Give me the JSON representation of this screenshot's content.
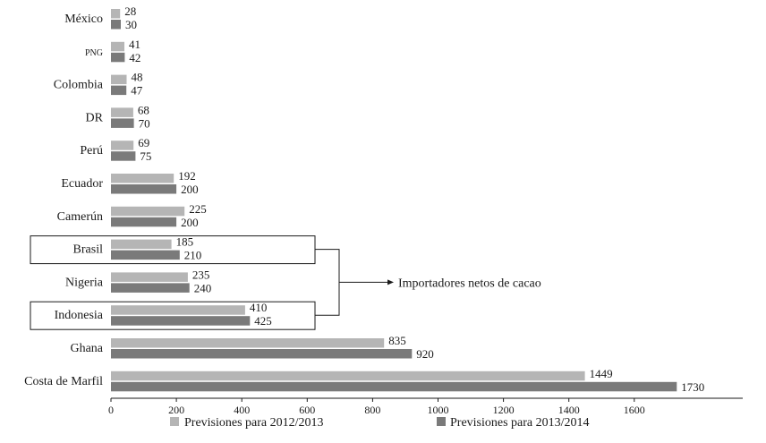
{
  "chart_data": {
    "type": "bar",
    "orientation": "horizontal",
    "title": "",
    "xlabel": "",
    "ylabel": "",
    "xlim": [
      0,
      1750
    ],
    "x_ticks": [
      0,
      200,
      400,
      600,
      800,
      1000,
      1200,
      1400,
      1600
    ],
    "grid": false,
    "legend_position": "bottom",
    "categories": [
      "México",
      "PNG",
      "Colombia",
      "DR",
      "Perú",
      "Ecuador",
      "Camerún",
      "Brasil",
      "Nigeria",
      "Indonesia",
      "Ghana",
      "Costa de Marfil"
    ],
    "series": [
      {
        "name": "Previsiones para 2012/2013",
        "color": "#b5b5b5",
        "values": [
          28,
          41,
          48,
          68,
          69,
          192,
          225,
          185,
          235,
          410,
          835,
          1449
        ]
      },
      {
        "name": "Previsiones para 2013/2014",
        "color": "#7a7a7a",
        "values": [
          30,
          42,
          47,
          70,
          75,
          200,
          200,
          210,
          240,
          425,
          920,
          1730
        ]
      }
    ],
    "highlighted_categories": [
      "Brasil",
      "Indonesia"
    ],
    "annotation": "Importadores netos de cacao"
  }
}
